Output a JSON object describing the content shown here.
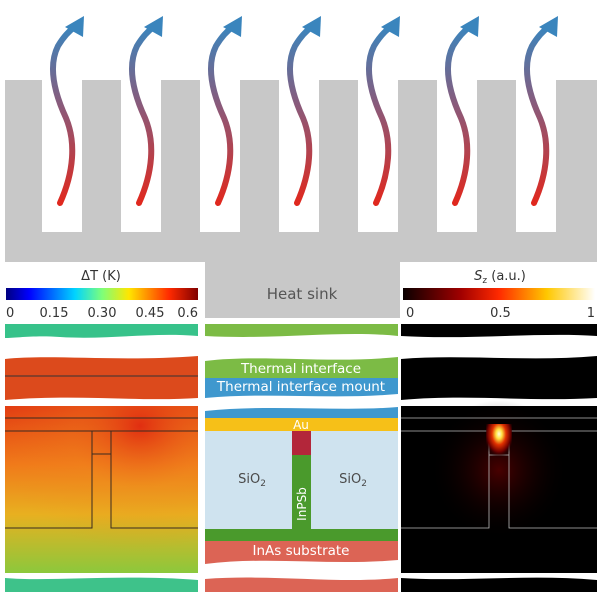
{
  "colors": {
    "heat_sink": "#c8c8c8",
    "arrow_top": "#3a85bd",
    "arrow_bottom": "#e0281e",
    "thermal_interface": "#7cbb45",
    "thermal_interface_mount": "#3f98ce",
    "au": "#f6c018",
    "sio2": "#cfe3ef",
    "inpsb": "#4a9a2c",
    "inpsb_top": "#b3263a",
    "inas_substrate": "#dc6455",
    "sz_background": "#000000"
  },
  "heat_sink": {
    "label": "Heat sink"
  },
  "temperature_colorbar": {
    "title": "ΔT (K)",
    "ticks": [
      "0",
      "0.15",
      "0.30",
      "0.45",
      "0.6"
    ]
  },
  "poynting_colorbar": {
    "title_symbol": "S",
    "title_subscript": "z",
    "title_unit": " (a.u.)",
    "ticks": [
      "0",
      "0.5",
      "1"
    ]
  },
  "layers": {
    "thermal_interface": "Thermal interface",
    "thermal_interface_mount": "Thermal interface mount",
    "au": "Au",
    "sio2_left_base": "SiO",
    "sio2_left_sub": "2",
    "sio2_right_base": "SiO",
    "sio2_right_sub": "2",
    "inpsb": "InPSb",
    "inas_substrate": "InAs substrate"
  },
  "arrows": {
    "count": 7,
    "icon": "heat-flow-arrow-icon"
  }
}
